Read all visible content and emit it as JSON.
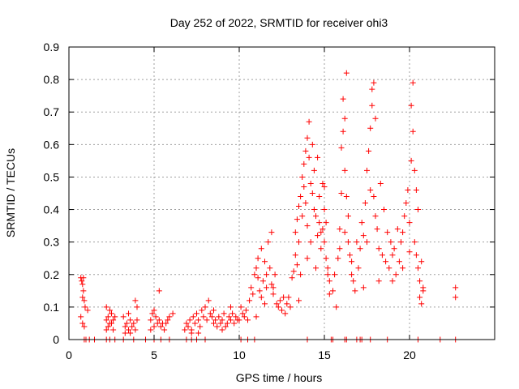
{
  "chart_data": {
    "type": "scatter",
    "title": "Day 252 of 2022, SRMTID for receiver ohi3",
    "xlabel": "GPS time / hours",
    "ylabel": "SRMTID / TECUs",
    "xlim": [
      0,
      25
    ],
    "ylim": [
      0,
      0.9
    ],
    "grid": true,
    "marker": "+",
    "color": "#ff0000",
    "x_ticks": [
      0,
      5,
      10,
      15,
      20
    ],
    "x_tick_labels": [
      "0",
      "5",
      "10",
      "15",
      "20"
    ],
    "y_ticks": [
      0,
      0.1,
      0.2,
      0.3,
      0.4,
      0.5,
      0.6,
      0.7,
      0.8,
      0.9
    ],
    "y_tick_labels": [
      "0",
      "0.1",
      "0.2",
      "0.3",
      "0.4",
      "0.5",
      "0.6",
      "0.7",
      "0.8",
      "0.9"
    ],
    "series": [
      {
        "name": "SRMTID",
        "points": [
          [
            0.7,
            0.19
          ],
          [
            0.75,
            0.18
          ],
          [
            0.8,
            0.17
          ],
          [
            0.8,
            0.13
          ],
          [
            0.85,
            0.15
          ],
          [
            0.85,
            0.19
          ],
          [
            0.9,
            0.12
          ],
          [
            0.95,
            0.1
          ],
          [
            0.7,
            0.07
          ],
          [
            0.8,
            0.05
          ],
          [
            0.9,
            0.04
          ],
          [
            1.1,
            0.09
          ],
          [
            2.2,
            0.1
          ],
          [
            2.2,
            0.06
          ],
          [
            2.3,
            0.07
          ],
          [
            2.3,
            0.04
          ],
          [
            2.4,
            0.09
          ],
          [
            2.4,
            0.05
          ],
          [
            2.5,
            0.08
          ],
          [
            2.6,
            0.03
          ],
          [
            2.6,
            0.06
          ],
          [
            2.7,
            0.07
          ],
          [
            2.2,
            0.03
          ],
          [
            2.5,
            0.05
          ],
          [
            3.2,
            0.07
          ],
          [
            3.3,
            0.04
          ],
          [
            3.4,
            0.05
          ],
          [
            3.5,
            0.03
          ],
          [
            3.5,
            0.08
          ],
          [
            3.6,
            0.06
          ],
          [
            3.7,
            0.04
          ],
          [
            3.8,
            0.05
          ],
          [
            3.9,
            0.03
          ],
          [
            3.9,
            0.12
          ],
          [
            4.0,
            0.1
          ],
          [
            4.0,
            0.06
          ],
          [
            3.3,
            0.02
          ],
          [
            3.6,
            0.02
          ],
          [
            4.8,
            0.06
          ],
          [
            4.9,
            0.08
          ],
          [
            5.0,
            0.09
          ],
          [
            5.1,
            0.07
          ],
          [
            5.2,
            0.05
          ],
          [
            5.3,
            0.06
          ],
          [
            5.4,
            0.04
          ],
          [
            5.5,
            0.05
          ],
          [
            5.6,
            0.03
          ],
          [
            5.7,
            0.05
          ],
          [
            5.8,
            0.06
          ],
          [
            5.3,
            0.15
          ],
          [
            5.0,
            0.04
          ],
          [
            4.8,
            0.03
          ],
          [
            5.9,
            0.07
          ],
          [
            6.1,
            0.08
          ],
          [
            6.8,
            0.03
          ],
          [
            6.9,
            0.05
          ],
          [
            7.0,
            0.04
          ],
          [
            7.1,
            0.06
          ],
          [
            7.2,
            0.03
          ],
          [
            7.3,
            0.07
          ],
          [
            7.4,
            0.05
          ],
          [
            7.5,
            0.08
          ],
          [
            7.6,
            0.06
          ],
          [
            7.7,
            0.04
          ],
          [
            7.8,
            0.09
          ],
          [
            7.9,
            0.07
          ],
          [
            8.0,
            0.1
          ],
          [
            8.1,
            0.06
          ],
          [
            8.2,
            0.12
          ],
          [
            8.3,
            0.08
          ],
          [
            8.4,
            0.07
          ],
          [
            8.5,
            0.05
          ],
          [
            8.6,
            0.06
          ],
          [
            8.7,
            0.04
          ],
          [
            8.8,
            0.07
          ],
          [
            8.9,
            0.05
          ],
          [
            9.0,
            0.06
          ],
          [
            9.1,
            0.08
          ],
          [
            9.2,
            0.04
          ],
          [
            9.3,
            0.05
          ],
          [
            9.4,
            0.07
          ],
          [
            9.5,
            0.06
          ],
          [
            9.6,
            0.08
          ],
          [
            9.7,
            0.05
          ],
          [
            9.8,
            0.07
          ],
          [
            9.9,
            0.06
          ],
          [
            7.2,
            0.02
          ],
          [
            7.6,
            0.02
          ],
          [
            8.5,
            0.09
          ],
          [
            9.0,
            0.03
          ],
          [
            9.5,
            0.1
          ],
          [
            10.0,
            0.06
          ],
          [
            10.1,
            0.1
          ],
          [
            10.2,
            0.08
          ],
          [
            10.3,
            0.07
          ],
          [
            10.4,
            0.09
          ],
          [
            10.5,
            0.06
          ],
          [
            10.6,
            0.12
          ],
          [
            10.7,
            0.16
          ],
          [
            10.8,
            0.14
          ],
          [
            10.9,
            0.2
          ],
          [
            11.0,
            0.22
          ],
          [
            11.1,
            0.19
          ],
          [
            11.1,
            0.25
          ],
          [
            11.2,
            0.15
          ],
          [
            11.3,
            0.13
          ],
          [
            11.3,
            0.28
          ],
          [
            11.4,
            0.18
          ],
          [
            11.5,
            0.24
          ],
          [
            11.6,
            0.2
          ],
          [
            11.6,
            0.16
          ],
          [
            11.7,
            0.3
          ],
          [
            11.8,
            0.22
          ],
          [
            11.9,
            0.33
          ],
          [
            11.9,
            0.17
          ],
          [
            12.0,
            0.14
          ],
          [
            12.1,
            0.2
          ],
          [
            12.2,
            0.11
          ],
          [
            12.3,
            0.1
          ],
          [
            12.4,
            0.12
          ],
          [
            12.5,
            0.09
          ],
          [
            12.6,
            0.13
          ],
          [
            12.7,
            0.08
          ],
          [
            12.8,
            0.11
          ],
          [
            12.9,
            0.13
          ],
          [
            13.0,
            0.1
          ],
          [
            11.0,
            0.07
          ],
          [
            11.5,
            0.11
          ],
          [
            12.0,
            0.16
          ],
          [
            13.1,
            0.19
          ],
          [
            13.2,
            0.21
          ],
          [
            13.3,
            0.26
          ],
          [
            13.3,
            0.33
          ],
          [
            13.4,
            0.37
          ],
          [
            13.4,
            0.23
          ],
          [
            13.5,
            0.3
          ],
          [
            13.5,
            0.41
          ],
          [
            13.6,
            0.44
          ],
          [
            13.6,
            0.2
          ],
          [
            13.7,
            0.5
          ],
          [
            13.7,
            0.38
          ],
          [
            13.8,
            0.47
          ],
          [
            13.8,
            0.54
          ],
          [
            13.9,
            0.58
          ],
          [
            13.9,
            0.42
          ],
          [
            14.0,
            0.62
          ],
          [
            14.0,
            0.35
          ],
          [
            14.1,
            0.67
          ],
          [
            14.1,
            0.56
          ],
          [
            14.2,
            0.48
          ],
          [
            14.2,
            0.3
          ],
          [
            14.3,
            0.45
          ],
          [
            14.3,
            0.6
          ],
          [
            14.4,
            0.52
          ],
          [
            14.4,
            0.4
          ],
          [
            14.5,
            0.38
          ],
          [
            14.6,
            0.56
          ],
          [
            14.6,
            0.32
          ],
          [
            14.7,
            0.44
          ],
          [
            14.7,
            0.36
          ],
          [
            14.8,
            0.33
          ],
          [
            14.8,
            0.28
          ],
          [
            14.9,
            0.48
          ],
          [
            14.9,
            0.34
          ],
          [
            15.0,
            0.4
          ],
          [
            15.0,
            0.3
          ],
          [
            15.1,
            0.25
          ],
          [
            15.1,
            0.36
          ],
          [
            15.2,
            0.2
          ],
          [
            15.2,
            0.22
          ],
          [
            15.3,
            0.14
          ],
          [
            15.3,
            0.18
          ],
          [
            13.5,
            0.12
          ],
          [
            14.0,
            0.25
          ],
          [
            14.5,
            0.22
          ],
          [
            15.0,
            0.47
          ],
          [
            15.5,
            0.15
          ],
          [
            15.6,
            0.2
          ],
          [
            15.7,
            0.1
          ],
          [
            15.8,
            0.25
          ],
          [
            15.9,
            0.34
          ],
          [
            16.0,
            0.45
          ],
          [
            16.0,
            0.59
          ],
          [
            16.1,
            0.64
          ],
          [
            16.1,
            0.74
          ],
          [
            16.2,
            0.68
          ],
          [
            16.2,
            0.52
          ],
          [
            16.3,
            0.82
          ],
          [
            16.3,
            0.44
          ],
          [
            16.4,
            0.38
          ],
          [
            16.4,
            0.3
          ],
          [
            16.5,
            0.26
          ],
          [
            16.6,
            0.24
          ],
          [
            16.6,
            0.2
          ],
          [
            16.7,
            0.18
          ],
          [
            16.8,
            0.15
          ],
          [
            16.9,
            0.3
          ],
          [
            17.0,
            0.22
          ],
          [
            17.1,
            0.28
          ],
          [
            17.2,
            0.36
          ],
          [
            17.3,
            0.32
          ],
          [
            17.4,
            0.42
          ],
          [
            17.5,
            0.52
          ],
          [
            17.5,
            0.3
          ],
          [
            17.6,
            0.58
          ],
          [
            17.7,
            0.65
          ],
          [
            17.7,
            0.46
          ],
          [
            17.8,
            0.72
          ],
          [
            17.8,
            0.77
          ],
          [
            17.9,
            0.79
          ],
          [
            17.9,
            0.44
          ],
          [
            18.0,
            0.68
          ],
          [
            18.0,
            0.38
          ],
          [
            18.1,
            0.34
          ],
          [
            18.2,
            0.28
          ],
          [
            18.3,
            0.48
          ],
          [
            18.4,
            0.26
          ],
          [
            18.5,
            0.4
          ],
          [
            18.6,
            0.24
          ],
          [
            18.7,
            0.33
          ],
          [
            18.8,
            0.22
          ],
          [
            18.9,
            0.3
          ],
          [
            19.0,
            0.18
          ],
          [
            19.1,
            0.28
          ],
          [
            19.2,
            0.2
          ],
          [
            19.3,
            0.34
          ],
          [
            19.4,
            0.24
          ],
          [
            19.5,
            0.3
          ],
          [
            19.6,
            0.22
          ],
          [
            19.7,
            0.38
          ],
          [
            19.8,
            0.42
          ],
          [
            19.9,
            0.46
          ],
          [
            20.0,
            0.36
          ],
          [
            20.1,
            0.55
          ],
          [
            20.1,
            0.72
          ],
          [
            20.2,
            0.79
          ],
          [
            20.2,
            0.64
          ],
          [
            20.3,
            0.52
          ],
          [
            20.3,
            0.3
          ],
          [
            20.4,
            0.46
          ],
          [
            20.4,
            0.26
          ],
          [
            20.5,
            0.4
          ],
          [
            20.5,
            0.22
          ],
          [
            20.6,
            0.18
          ],
          [
            20.6,
            0.13
          ],
          [
            20.7,
            0.24
          ],
          [
            20.7,
            0.11
          ],
          [
            20.8,
            0.16
          ],
          [
            20.8,
            0.15
          ],
          [
            15.9,
            0.28
          ],
          [
            16.2,
            0.33
          ],
          [
            17.3,
            0.16
          ],
          [
            18.2,
            0.18
          ],
          [
            19.0,
            0.26
          ],
          [
            19.6,
            0.33
          ],
          [
            20.0,
            0.27
          ],
          [
            22.7,
            0.16
          ],
          [
            22.7,
            0.13
          ],
          [
            0.9,
            0.0
          ],
          [
            1.0,
            0.0
          ],
          [
            1.2,
            0.0
          ],
          [
            1.5,
            0.0
          ],
          [
            2.2,
            0.0
          ],
          [
            2.4,
            0.0
          ],
          [
            2.7,
            0.0
          ],
          [
            3.2,
            0.0
          ],
          [
            3.8,
            0.0
          ],
          [
            4.5,
            0.0
          ],
          [
            5.0,
            0.0
          ],
          [
            5.4,
            0.0
          ],
          [
            5.9,
            0.0
          ],
          [
            6.9,
            0.0
          ],
          [
            7.2,
            0.0
          ],
          [
            7.5,
            0.0
          ],
          [
            8.0,
            0.0
          ],
          [
            10.1,
            0.0
          ],
          [
            10.5,
            0.0
          ],
          [
            10.9,
            0.0
          ],
          [
            14.0,
            0.0
          ],
          [
            15.4,
            0.0
          ],
          [
            15.5,
            0.0
          ],
          [
            16.2,
            0.0
          ],
          [
            16.3,
            0.0
          ],
          [
            16.9,
            0.0
          ],
          [
            17.1,
            0.0
          ],
          [
            17.2,
            0.0
          ],
          [
            17.7,
            0.0
          ],
          [
            18.7,
            0.0
          ],
          [
            20.5,
            0.0
          ],
          [
            21.8,
            0.0
          ],
          [
            22.7,
            0.0
          ]
        ]
      }
    ]
  }
}
